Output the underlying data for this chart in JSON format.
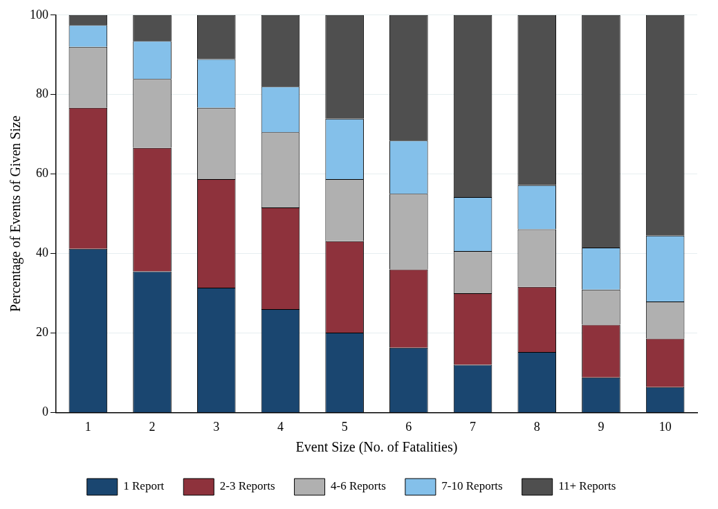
{
  "chart_data": {
    "type": "bar",
    "stacked": true,
    "xlabel": "Event Size (No. of Fatalities)",
    "ylabel": "Percentage of Events of Given Size",
    "categories": [
      "1",
      "2",
      "3",
      "4",
      "5",
      "6",
      "7",
      "8",
      "9",
      "10"
    ],
    "series": [
      {
        "name": "1 Report",
        "color": "#1a4670",
        "values": [
          41.2,
          35.5,
          31.4,
          26.0,
          20.1,
          16.3,
          12.0,
          15.2,
          8.8,
          6.4
        ]
      },
      {
        "name": "2-3 Reports",
        "color": "#8e323c",
        "values": [
          35.5,
          31.1,
          27.3,
          25.6,
          23.0,
          19.7,
          18.0,
          16.4,
          13.3,
          12.2
        ]
      },
      {
        "name": "4-6 Reports",
        "color": "#b0b0b0",
        "values": [
          15.3,
          17.3,
          18.0,
          18.9,
          15.6,
          19.0,
          10.6,
          14.5,
          8.8,
          9.3
        ]
      },
      {
        "name": "7-10 Reports",
        "color": "#84c0ea",
        "values": [
          5.5,
          9.6,
          12.2,
          11.5,
          15.2,
          13.4,
          13.6,
          11.1,
          10.6,
          16.6
        ]
      },
      {
        "name": "11+ Reports",
        "color": "#4f4f4f",
        "values": [
          2.5,
          6.5,
          11.1,
          18.0,
          26.1,
          31.6,
          45.8,
          42.8,
          58.5,
          55.5
        ]
      }
    ],
    "ylim": [
      0,
      100
    ],
    "yticks": [
      0,
      20,
      40,
      60,
      80,
      100
    ],
    "grid": "y",
    "legend": "bottom"
  }
}
